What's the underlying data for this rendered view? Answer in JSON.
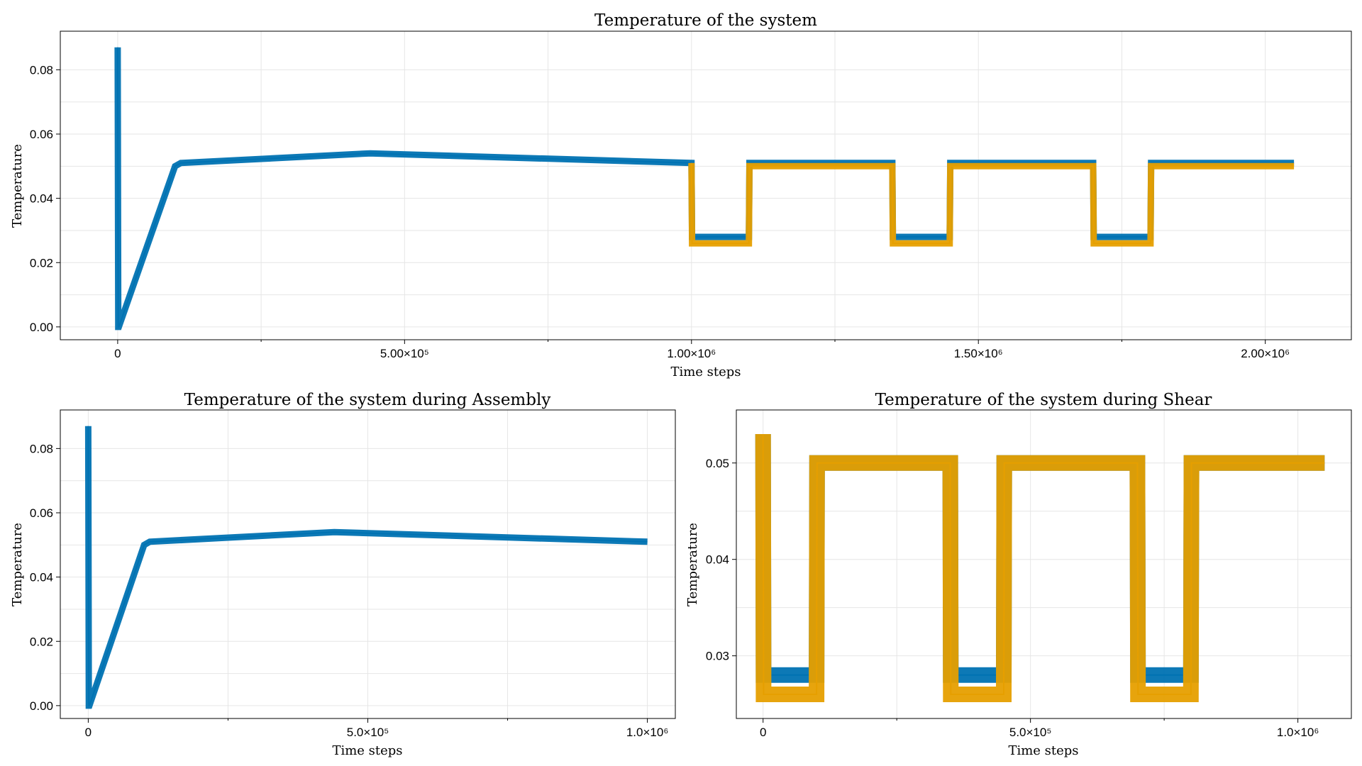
{
  "colors": {
    "series1": "#0072b2",
    "series2": "#e69f00",
    "grid": "#e6e6e6"
  },
  "chart_data": [
    {
      "type": "line",
      "title": "Temperature of the system",
      "xlabel": "Time steps",
      "ylabel": "Temperature",
      "xlim": [
        -100000,
        2150000
      ],
      "ylim": [
        -0.004,
        0.092
      ],
      "xticks": [
        0,
        500000,
        1000000,
        1500000,
        2000000
      ],
      "xticklabels": [
        "0",
        "5.00×10⁵",
        "1.00×10⁶",
        "1.50×10⁶",
        "2.00×10⁶"
      ],
      "yticks": [
        0.0,
        0.02,
        0.04,
        0.06,
        0.08
      ],
      "yticklabels": [
        "0.00",
        "0.02",
        "0.04",
        "0.06",
        "0.08"
      ],
      "grid": true,
      "series": [
        {
          "x": [
            0,
            1000,
            2000,
            100000,
            110000,
            440000,
            1000000,
            1001000,
            1100000,
            1101000,
            1350000,
            1351000,
            1450000,
            1451000,
            1700000,
            1701000,
            1800000,
            1801000,
            2050000
          ],
          "y": [
            0.087,
            0.0,
            0.0,
            0.05,
            0.051,
            0.054,
            0.051,
            0.028,
            0.028,
            0.051,
            0.051,
            0.028,
            0.028,
            0.051,
            0.051,
            0.028,
            0.028,
            0.051,
            0.051
          ]
        },
        {
          "x": [
            1000000,
            1001000,
            1100000,
            1101000,
            1350000,
            1351000,
            1450000,
            1451000,
            1700000,
            1701000,
            1800000,
            1801000,
            2050000
          ],
          "y": [
            0.051,
            0.026,
            0.026,
            0.05,
            0.05,
            0.026,
            0.026,
            0.05,
            0.05,
            0.026,
            0.026,
            0.05,
            0.05
          ]
        }
      ]
    },
    {
      "type": "line",
      "title": "Temperature of the system during Assembly",
      "xlabel": "Time steps",
      "ylabel": "Temperature",
      "xlim": [
        -50000,
        1050000
      ],
      "ylim": [
        -0.004,
        0.092
      ],
      "xticks": [
        0,
        500000,
        1000000
      ],
      "xticklabels": [
        "0",
        "5.0×10⁵",
        "1.0×10⁶"
      ],
      "yticks": [
        0.0,
        0.02,
        0.04,
        0.06,
        0.08
      ],
      "yticklabels": [
        "0.00",
        "0.02",
        "0.04",
        "0.06",
        "0.08"
      ],
      "grid": true,
      "series": [
        {
          "x": [
            0,
            1000,
            2000,
            100000,
            110000,
            440000,
            1000000
          ],
          "y": [
            0.087,
            0.0,
            0.0,
            0.05,
            0.051,
            0.054,
            0.051
          ]
        }
      ]
    },
    {
      "type": "line",
      "title": "Temperature of the system during Shear",
      "xlabel": "Time steps",
      "ylabel": "Temperature",
      "xlim": [
        -50000,
        1100000
      ],
      "ylim": [
        0.0235,
        0.0555
      ],
      "xticks": [
        0,
        500000,
        1000000
      ],
      "xticklabels": [
        "0",
        "5.0×10⁵",
        "1.0×10⁶"
      ],
      "yticks": [
        0.03,
        0.04,
        0.05
      ],
      "yticklabels": [
        "0.03",
        "0.04",
        "0.05"
      ],
      "grid": true,
      "series": [
        {
          "x": [
            0,
            1000,
            100000,
            101000,
            350000,
            351000,
            450000,
            451000,
            700000,
            701000,
            800000,
            801000,
            1050000
          ],
          "y": [
            0.053,
            0.028,
            0.028,
            0.05,
            0.05,
            0.028,
            0.028,
            0.05,
            0.05,
            0.028,
            0.028,
            0.05,
            0.05
          ]
        },
        {
          "x": [
            0,
            1000,
            100000,
            101000,
            350000,
            351000,
            450000,
            451000,
            700000,
            701000,
            800000,
            801000,
            1050000
          ],
          "y": [
            0.053,
            0.026,
            0.026,
            0.05,
            0.05,
            0.026,
            0.026,
            0.05,
            0.05,
            0.026,
            0.026,
            0.05,
            0.05
          ]
        }
      ]
    }
  ]
}
